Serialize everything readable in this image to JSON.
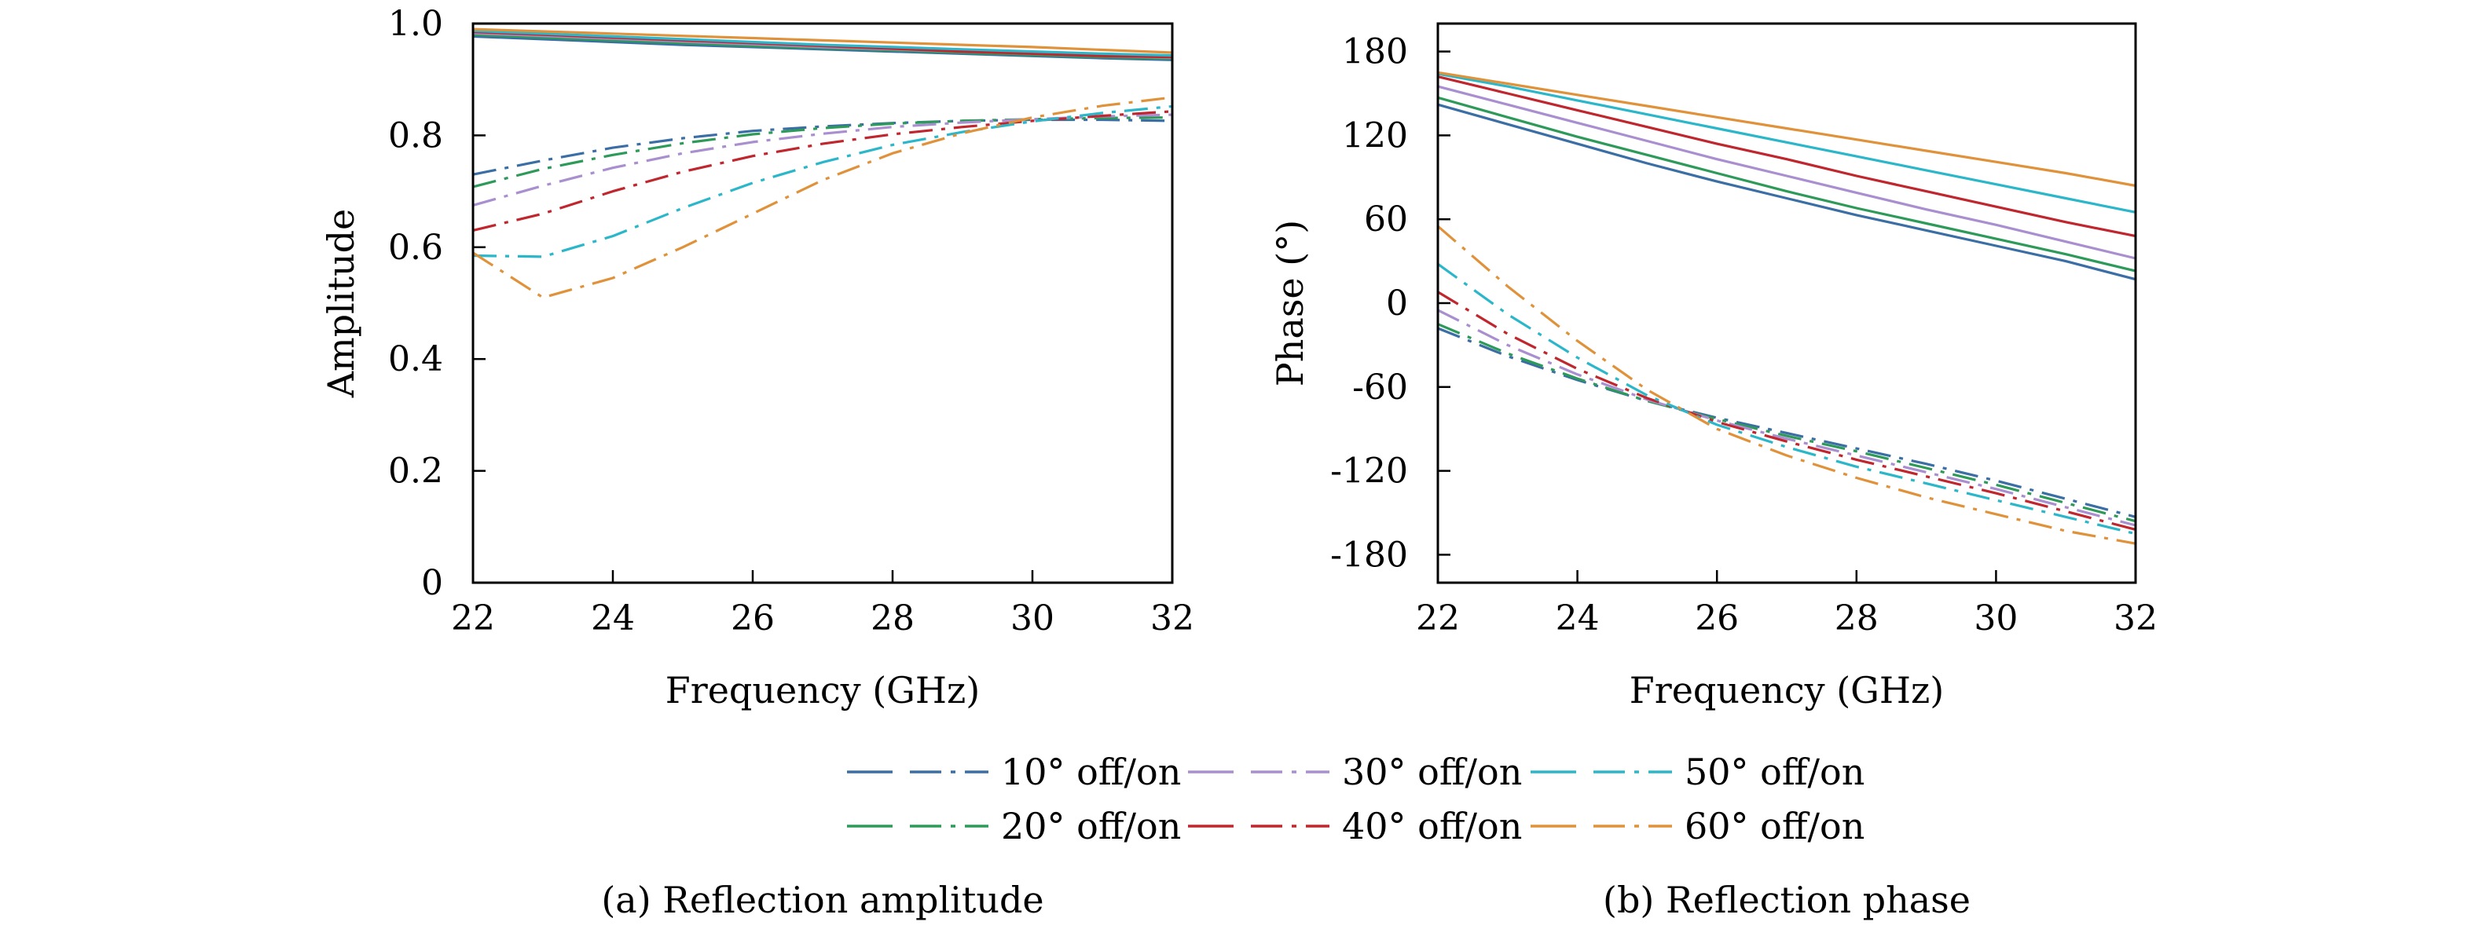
{
  "colors": {
    "10": "#3a6ea5",
    "20": "#2e9a5a",
    "30": "#a98fcf",
    "40": "#c0262d",
    "50": "#2bb7c9",
    "60": "#e0923a"
  },
  "chart_data": [
    {
      "type": "line",
      "caption": "(a) Reflection amplitude",
      "xlabel": "Frequency (GHz)",
      "ylabel": "Amplitude",
      "xlim": [
        22,
        32
      ],
      "ylim": [
        0,
        1.0
      ],
      "xticks": [
        22,
        24,
        26,
        28,
        30,
        32
      ],
      "xtick_labels": [
        "22",
        "24",
        "26",
        "28",
        "30",
        "32"
      ],
      "yticks": [
        0,
        0.2,
        0.4,
        0.6,
        0.8,
        1.0
      ],
      "ytick_labels": [
        "0",
        "0.2",
        "0.4",
        "0.6",
        "0.8",
        "1.0"
      ],
      "grid": false,
      "x": [
        22,
        23,
        24,
        25,
        26,
        27,
        28,
        29,
        30,
        31,
        32
      ],
      "series": [
        {
          "name": "10° off",
          "color_key": "10",
          "style": "solid",
          "values": [
            0.977,
            0.972,
            0.967,
            0.962,
            0.958,
            0.954,
            0.95,
            0.946,
            0.942,
            0.938,
            0.935
          ]
        },
        {
          "name": "20° off",
          "color_key": "20",
          "style": "solid",
          "values": [
            0.98,
            0.975,
            0.97,
            0.965,
            0.96,
            0.956,
            0.952,
            0.948,
            0.944,
            0.94,
            0.937
          ]
        },
        {
          "name": "30° off",
          "color_key": "30",
          "style": "solid",
          "values": [
            0.983,
            0.978,
            0.973,
            0.968,
            0.963,
            0.958,
            0.954,
            0.95,
            0.946,
            0.942,
            0.939
          ]
        },
        {
          "name": "40° off",
          "color_key": "40",
          "style": "solid",
          "values": [
            0.985,
            0.98,
            0.975,
            0.97,
            0.965,
            0.96,
            0.955,
            0.95,
            0.946,
            0.942,
            0.94
          ]
        },
        {
          "name": "50° off",
          "color_key": "50",
          "style": "solid",
          "values": [
            0.987,
            0.982,
            0.977,
            0.972,
            0.967,
            0.962,
            0.958,
            0.954,
            0.95,
            0.946,
            0.943
          ]
        },
        {
          "name": "60° off",
          "color_key": "60",
          "style": "solid",
          "values": [
            0.99,
            0.986,
            0.982,
            0.978,
            0.974,
            0.97,
            0.966,
            0.962,
            0.958,
            0.953,
            0.948
          ]
        },
        {
          "name": "10° on",
          "color_key": "10",
          "style": "dashdot",
          "values": [
            0.73,
            0.755,
            0.778,
            0.795,
            0.808,
            0.816,
            0.822,
            0.826,
            0.828,
            0.828,
            0.826
          ]
        },
        {
          "name": "20° on",
          "color_key": "20",
          "style": "dashdot",
          "values": [
            0.708,
            0.74,
            0.765,
            0.786,
            0.802,
            0.813,
            0.821,
            0.826,
            0.829,
            0.831,
            0.832
          ]
        },
        {
          "name": "30° on",
          "color_key": "30",
          "style": "dashdot",
          "values": [
            0.675,
            0.71,
            0.742,
            0.768,
            0.788,
            0.803,
            0.815,
            0.823,
            0.829,
            0.834,
            0.837
          ]
        },
        {
          "name": "40° on",
          "color_key": "40",
          "style": "dashdot",
          "values": [
            0.63,
            0.66,
            0.7,
            0.735,
            0.763,
            0.785,
            0.802,
            0.815,
            0.826,
            0.835,
            0.843
          ]
        },
        {
          "name": "50° on",
          "color_key": "50",
          "style": "dashdot",
          "values": [
            0.585,
            0.583,
            0.62,
            0.67,
            0.715,
            0.752,
            0.783,
            0.806,
            0.825,
            0.84,
            0.852
          ]
        },
        {
          "name": "60° on",
          "color_key": "60",
          "style": "dashdot",
          "values": [
            0.59,
            0.51,
            0.545,
            0.6,
            0.66,
            0.72,
            0.768,
            0.804,
            0.832,
            0.853,
            0.868
          ]
        }
      ]
    },
    {
      "type": "line",
      "caption": "(b) Reflection phase",
      "xlabel": "Frequency (GHz)",
      "ylabel": "Phase (°)",
      "xlim": [
        22,
        32
      ],
      "ylim": [
        -200,
        200
      ],
      "xticks": [
        22,
        24,
        26,
        28,
        30,
        32
      ],
      "xtick_labels": [
        "22",
        "24",
        "26",
        "28",
        "30",
        "32"
      ],
      "yticks": [
        180,
        120,
        60,
        0,
        -60,
        -120,
        -180
      ],
      "ytick_labels": [
        "180",
        "120",
        "60",
        "0",
        "-60",
        "-120",
        "-180"
      ],
      "grid": false,
      "x": [
        22,
        23,
        24,
        25,
        26,
        27,
        28,
        29,
        30,
        31,
        32
      ],
      "series": [
        {
          "name": "10° off",
          "color_key": "10",
          "style": "solid",
          "values": [
            142,
            128,
            114,
            100,
            87,
            75,
            63,
            52,
            41,
            30,
            17
          ]
        },
        {
          "name": "20° off",
          "color_key": "20",
          "style": "solid",
          "values": [
            147,
            133,
            119,
            106,
            93,
            80,
            68,
            57,
            46,
            35,
            23
          ]
        },
        {
          "name": "30° off",
          "color_key": "30",
          "style": "solid",
          "values": [
            155,
            142,
            129,
            116,
            103,
            91,
            79,
            67,
            56,
            44,
            32
          ]
        },
        {
          "name": "40° off",
          "color_key": "40",
          "style": "solid",
          "values": [
            162,
            150,
            138,
            126,
            114,
            103,
            91,
            80,
            69,
            58,
            48
          ]
        },
        {
          "name": "50° off",
          "color_key": "50",
          "style": "solid",
          "values": [
            164,
            155,
            145,
            135,
            125,
            115,
            105,
            95,
            85,
            75,
            65
          ]
        },
        {
          "name": "60° off",
          "color_key": "60",
          "style": "solid",
          "values": [
            165,
            157,
            149,
            141,
            133,
            125,
            117,
            109,
            101,
            93,
            84
          ]
        },
        {
          "name": "10° on",
          "color_key": "10",
          "style": "dashdot",
          "values": [
            -18,
            -38,
            -55,
            -70,
            -82,
            -93,
            -104,
            -115,
            -127,
            -140,
            -153
          ]
        },
        {
          "name": "20° on",
          "color_key": "20",
          "style": "dashdot",
          "values": [
            -15,
            -36,
            -54,
            -70,
            -83,
            -95,
            -106,
            -118,
            -130,
            -143,
            -156
          ]
        },
        {
          "name": "30° on",
          "color_key": "30",
          "style": "dashdot",
          "values": [
            -5,
            -30,
            -51,
            -69,
            -84,
            -97,
            -109,
            -121,
            -133,
            -146,
            -159
          ]
        },
        {
          "name": "40° on",
          "color_key": "40",
          "style": "dashdot",
          "values": [
            8,
            -22,
            -47,
            -68,
            -85,
            -99,
            -112,
            -124,
            -136,
            -149,
            -162
          ]
        },
        {
          "name": "50° on",
          "color_key": "50",
          "style": "dashdot",
          "values": [
            28,
            -8,
            -39,
            -66,
            -87,
            -103,
            -117,
            -129,
            -141,
            -153,
            -165
          ]
        },
        {
          "name": "60° on",
          "color_key": "60",
          "style": "dashdot",
          "values": [
            55,
            12,
            -27,
            -62,
            -90,
            -109,
            -125,
            -139,
            -151,
            -163,
            -172
          ]
        }
      ]
    }
  ],
  "legend": {
    "placement": "bottom-center",
    "entries": [
      {
        "key": "10",
        "label": "10° off/on"
      },
      {
        "key": "20",
        "label": "20° off/on"
      },
      {
        "key": "30",
        "label": "30° off/on"
      },
      {
        "key": "40",
        "label": "40° off/on"
      },
      {
        "key": "50",
        "label": "50° off/on"
      },
      {
        "key": "60",
        "label": "60° off/on"
      }
    ]
  }
}
